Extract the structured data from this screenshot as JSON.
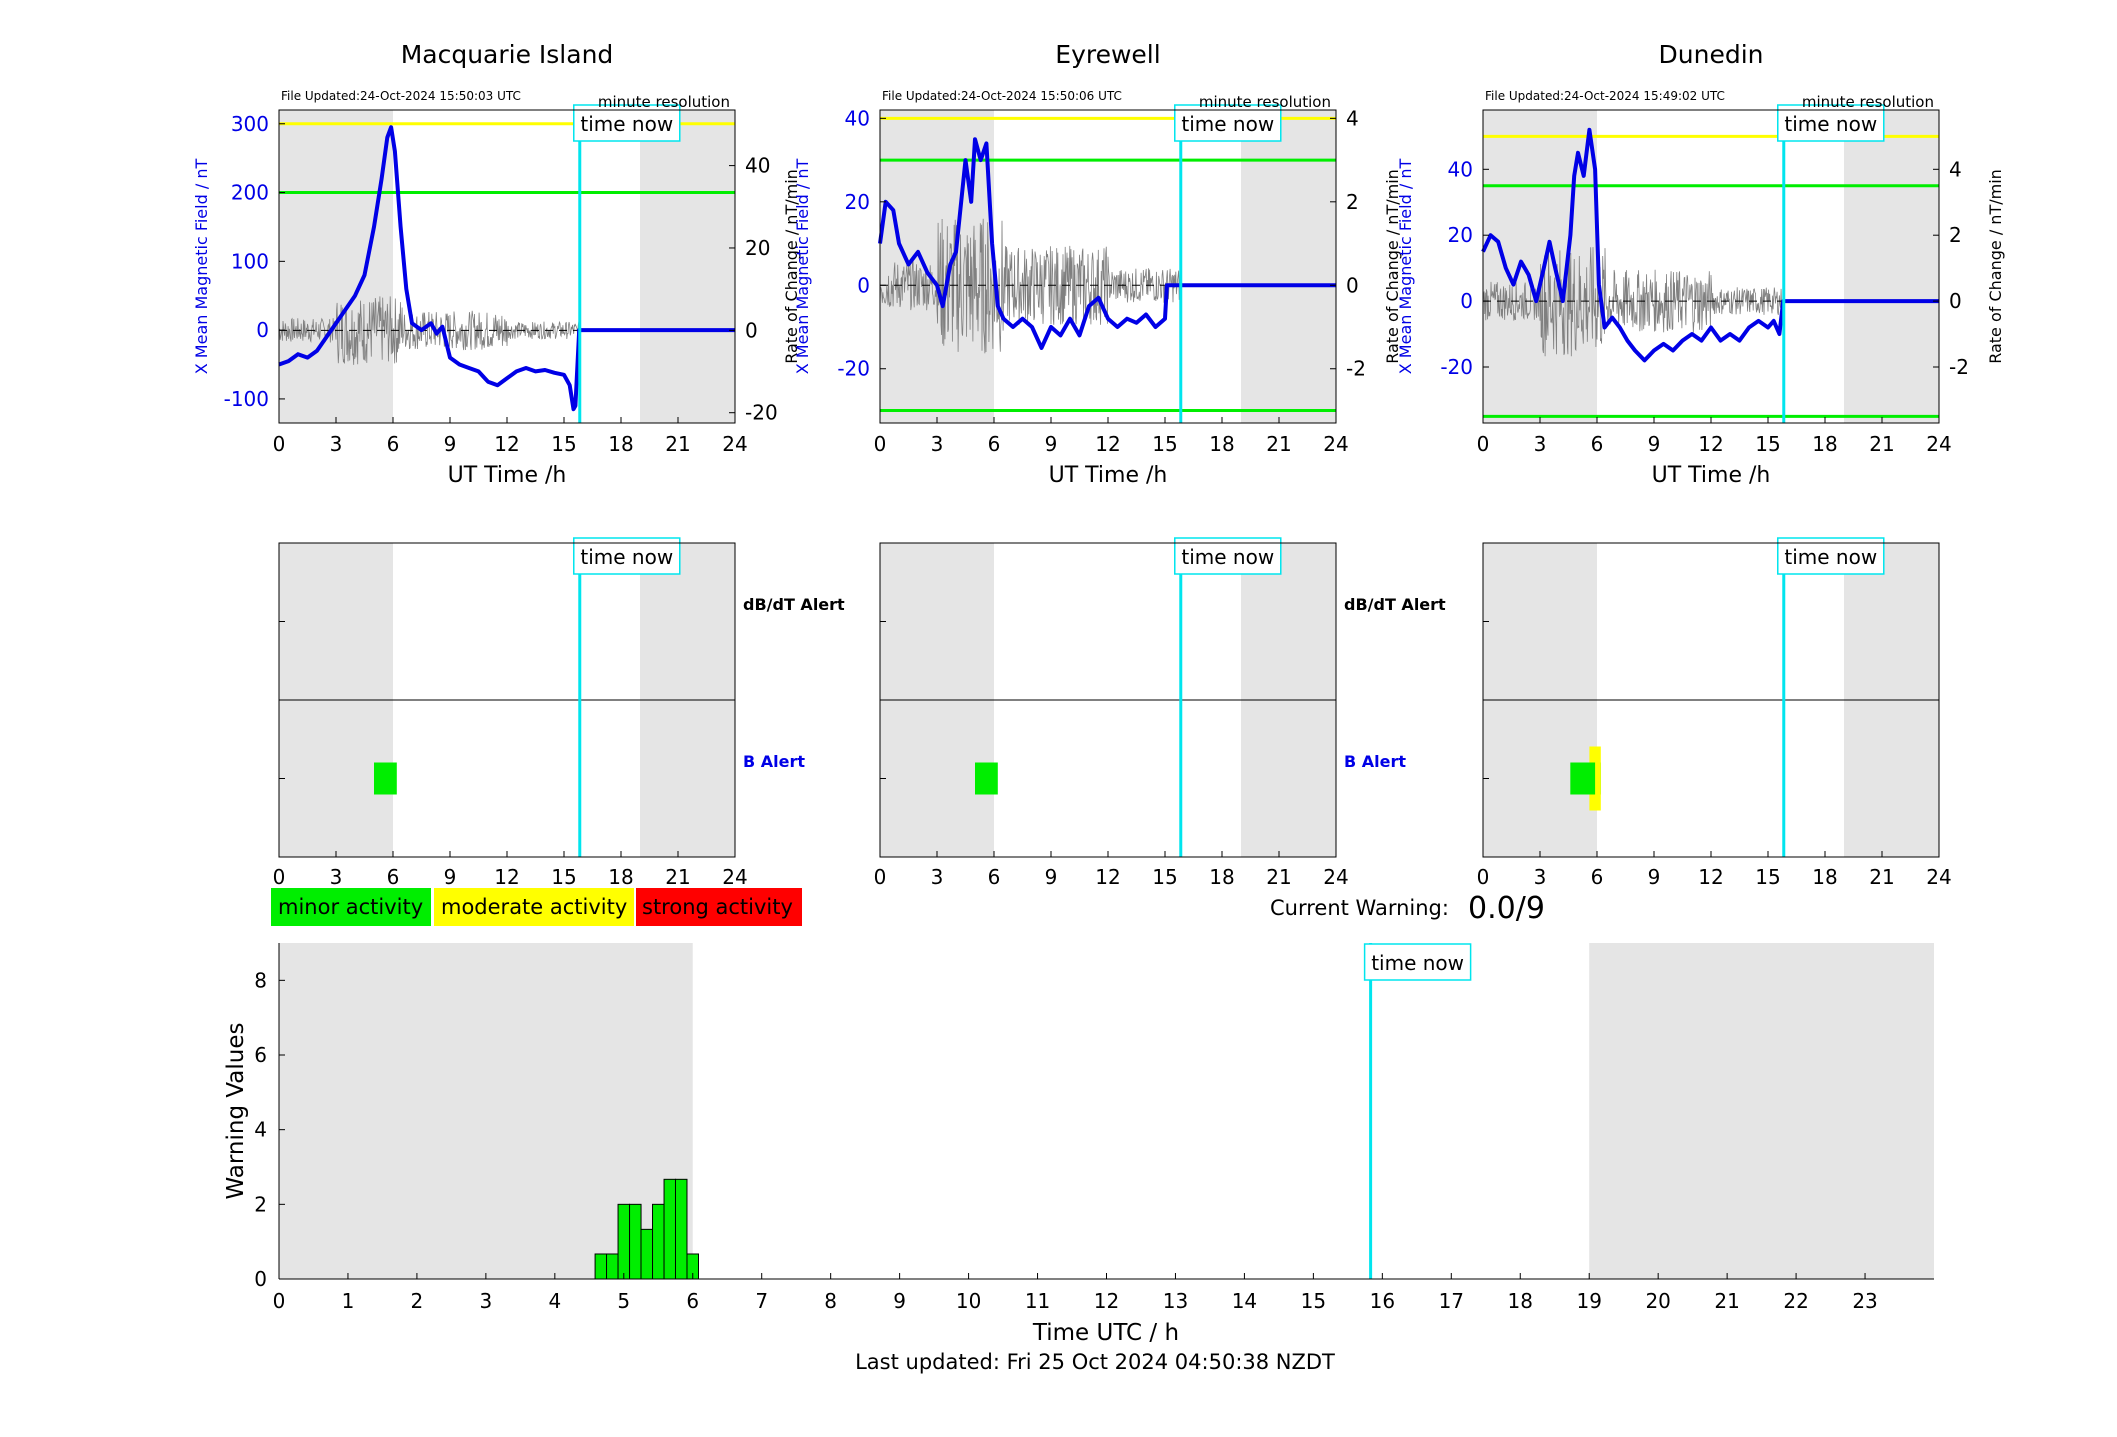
{
  "colors": {
    "night_shade": "#e5e5e5",
    "x_field_line": "#0000e6",
    "rate_line": "#808080",
    "time_now": "#00e5ee",
    "threshold_yellow": "#ffff00",
    "threshold_green": "#00ee00",
    "minor": "#00ee00",
    "moderate": "#ffff00",
    "strong": "#ff0000",
    "blue_label": "#0000e6"
  },
  "time_now_label": "time now",
  "time_now_hour": 15.83,
  "stations": [
    {
      "name": "Macquarie Island",
      "file_updated": "File Updated:24-Oct-2024 15:50:03 UTC",
      "resolution": "minute resolution",
      "left_ylabel": "X Mean Magnetic Field / nT",
      "right_ylabel": "Rate of Change / nT/min",
      "xlabel": "UT Time /h",
      "left_ylim": [
        -135,
        320
      ],
      "left_ticks": [
        "-100",
        "0",
        "100",
        "200",
        "300"
      ],
      "left_tick_values": [
        -100,
        0,
        100,
        200,
        300
      ],
      "right_ylim": [
        -22.5,
        53.5
      ],
      "right_ticks": [
        "-20",
        "0",
        "20",
        "40"
      ],
      "right_tick_values": [
        -20,
        0,
        20,
        40
      ],
      "threshold_yellow": 300,
      "threshold_green": 200,
      "x_series": [
        [
          0,
          -50
        ],
        [
          0.5,
          -45
        ],
        [
          1,
          -35
        ],
        [
          1.5,
          -40
        ],
        [
          2,
          -30
        ],
        [
          2.5,
          -10
        ],
        [
          3,
          10
        ],
        [
          3.5,
          30
        ],
        [
          4,
          50
        ],
        [
          4.5,
          80
        ],
        [
          5,
          150
        ],
        [
          5.4,
          220
        ],
        [
          5.7,
          280
        ],
        [
          5.9,
          295
        ],
        [
          6.1,
          260
        ],
        [
          6.4,
          150
        ],
        [
          6.7,
          60
        ],
        [
          7,
          10
        ],
        [
          7.5,
          0
        ],
        [
          8,
          10
        ],
        [
          8.3,
          -5
        ],
        [
          8.6,
          5
        ],
        [
          9,
          -40
        ],
        [
          9.5,
          -50
        ],
        [
          10,
          -55
        ],
        [
          10.5,
          -60
        ],
        [
          11,
          -75
        ],
        [
          11.5,
          -80
        ],
        [
          12,
          -70
        ],
        [
          12.5,
          -60
        ],
        [
          13,
          -55
        ],
        [
          13.5,
          -60
        ],
        [
          14,
          -58
        ],
        [
          14.5,
          -62
        ],
        [
          15,
          -65
        ],
        [
          15.3,
          -80
        ],
        [
          15.5,
          -115
        ],
        [
          15.6,
          -110
        ],
        [
          15.8,
          0
        ],
        [
          24,
          0
        ]
      ],
      "rate_amplitude": 6,
      "b_alerts": [
        {
          "start": 5.0,
          "end": 6.2,
          "level": "minor"
        }
      ]
    },
    {
      "name": "Eyrewell",
      "file_updated": "File Updated:24-Oct-2024 15:50:06 UTC",
      "resolution": "minute resolution",
      "left_ylabel": "X Mean Magnetic Field / nT",
      "right_ylabel": "Rate of Change / nT/min",
      "xlabel": "UT Time /h",
      "left_ylim": [
        -33,
        42
      ],
      "left_ticks": [
        "-20",
        "0",
        "20",
        "40"
      ],
      "left_tick_values": [
        -20,
        0,
        20,
        40
      ],
      "right_ylim": [
        -3.3,
        4.2
      ],
      "right_ticks": [
        "-2",
        "0",
        "2",
        "4"
      ],
      "right_tick_values": [
        -2,
        0,
        2,
        4
      ],
      "threshold_yellow": 40,
      "threshold_green": 30,
      "threshold_green_low": -30,
      "x_series": [
        [
          0,
          10
        ],
        [
          0.3,
          20
        ],
        [
          0.7,
          18
        ],
        [
          1,
          10
        ],
        [
          1.5,
          5
        ],
        [
          2,
          8
        ],
        [
          2.5,
          3
        ],
        [
          3,
          0
        ],
        [
          3.3,
          -5
        ],
        [
          3.7,
          5
        ],
        [
          4,
          8
        ],
        [
          4.5,
          30
        ],
        [
          4.8,
          20
        ],
        [
          5,
          35
        ],
        [
          5.3,
          30
        ],
        [
          5.6,
          34
        ],
        [
          5.9,
          10
        ],
        [
          6.2,
          -5
        ],
        [
          6.5,
          -8
        ],
        [
          7,
          -10
        ],
        [
          7.5,
          -8
        ],
        [
          8,
          -10
        ],
        [
          8.5,
          -15
        ],
        [
          9,
          -10
        ],
        [
          9.5,
          -12
        ],
        [
          10,
          -8
        ],
        [
          10.5,
          -12
        ],
        [
          11,
          -5
        ],
        [
          11.5,
          -3
        ],
        [
          12,
          -8
        ],
        [
          12.5,
          -10
        ],
        [
          13,
          -8
        ],
        [
          13.5,
          -9
        ],
        [
          14,
          -7
        ],
        [
          14.5,
          -10
        ],
        [
          15,
          -8
        ],
        [
          15.1,
          0
        ],
        [
          24,
          0
        ]
      ],
      "rate_amplitude": 1.2,
      "b_alerts": [
        {
          "start": 5.0,
          "end": 6.2,
          "level": "minor"
        }
      ]
    },
    {
      "name": "Dunedin",
      "file_updated": "File Updated:24-Oct-2024 15:49:02 UTC",
      "resolution": "minute resolution",
      "left_ylabel": "X Mean Magnetic Field / nT",
      "right_ylabel": "Rate of Change / nT/min",
      "xlabel": "UT Time /h",
      "left_ylim": [
        -37,
        58
      ],
      "left_ticks": [
        "-20",
        "0",
        "20",
        "40"
      ],
      "left_tick_values": [
        -20,
        0,
        20,
        40
      ],
      "right_ylim": [
        -3.7,
        5.8
      ],
      "right_ticks": [
        "-2",
        "0",
        "2",
        "4"
      ],
      "right_tick_values": [
        -2,
        0,
        2,
        4
      ],
      "threshold_yellow": 50,
      "threshold_green": 35,
      "threshold_green_low": -35,
      "x_series": [
        [
          0,
          15
        ],
        [
          0.4,
          20
        ],
        [
          0.8,
          18
        ],
        [
          1.2,
          10
        ],
        [
          1.6,
          5
        ],
        [
          2,
          12
        ],
        [
          2.4,
          8
        ],
        [
          2.8,
          0
        ],
        [
          3.2,
          10
        ],
        [
          3.5,
          18
        ],
        [
          3.8,
          10
        ],
        [
          4.2,
          0
        ],
        [
          4.6,
          20
        ],
        [
          4.8,
          38
        ],
        [
          5,
          45
        ],
        [
          5.3,
          38
        ],
        [
          5.6,
          52
        ],
        [
          5.9,
          40
        ],
        [
          6.1,
          5
        ],
        [
          6.4,
          -8
        ],
        [
          6.8,
          -5
        ],
        [
          7.2,
          -8
        ],
        [
          7.6,
          -12
        ],
        [
          8,
          -15
        ],
        [
          8.5,
          -18
        ],
        [
          9,
          -15
        ],
        [
          9.5,
          -13
        ],
        [
          10,
          -15
        ],
        [
          10.5,
          -12
        ],
        [
          11,
          -10
        ],
        [
          11.5,
          -12
        ],
        [
          12,
          -8
        ],
        [
          12.5,
          -12
        ],
        [
          13,
          -10
        ],
        [
          13.5,
          -12
        ],
        [
          14,
          -8
        ],
        [
          14.5,
          -6
        ],
        [
          15,
          -8
        ],
        [
          15.3,
          -6
        ],
        [
          15.6,
          -10
        ],
        [
          15.8,
          0
        ],
        [
          24,
          0
        ]
      ],
      "rate_amplitude": 1.2,
      "b_alerts": [
        {
          "start": 4.6,
          "end": 6.2,
          "level": "minor"
        },
        {
          "start": 5.6,
          "end": 6.2,
          "level": "moderate"
        }
      ]
    }
  ],
  "alert_labels": {
    "dbdt": "dB/dT Alert",
    "b": "B Alert"
  },
  "legend": {
    "minor": "minor activity",
    "moderate": "moderate activity",
    "strong": "strong activity"
  },
  "current_warning": {
    "label": "Current Warning:",
    "value": "0.0/9"
  },
  "chart_data": {
    "type": "bar",
    "xlabel": "Time UTC / h",
    "ylabel": "Warning Values",
    "xlim": [
      0,
      24
    ],
    "ylim": [
      0,
      9
    ],
    "x_ticks": [
      0,
      1,
      2,
      3,
      4,
      5,
      6,
      7,
      8,
      9,
      10,
      11,
      12,
      13,
      14,
      15,
      16,
      17,
      18,
      19,
      20,
      21,
      22,
      23
    ],
    "y_ticks": [
      0,
      2,
      4,
      6,
      8
    ],
    "bin_width": 0.1667,
    "x": [
      4.667,
      4.833,
      5.0,
      5.167,
      5.333,
      5.5,
      5.667,
      5.833,
      6.0
    ],
    "values": [
      0.67,
      0.67,
      2.0,
      2.0,
      1.33,
      2.0,
      2.67,
      2.67,
      0.67
    ],
    "night_spans": [
      [
        0,
        6
      ],
      [
        19,
        24
      ]
    ],
    "time_now_hour": 15.83
  },
  "footer": "Last updated: Fri 25 Oct 2024 04:50:38 NZDT"
}
